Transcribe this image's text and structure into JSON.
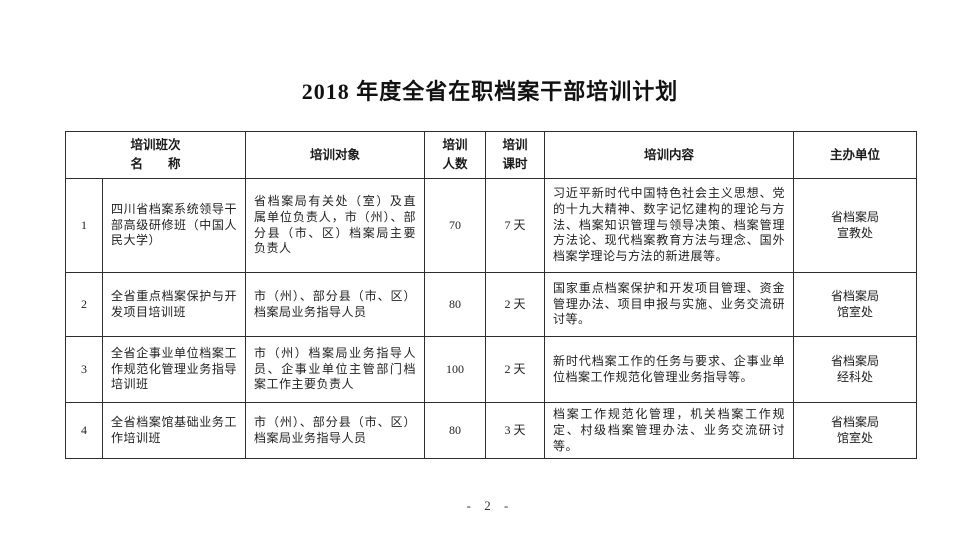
{
  "title": "2018 年度全省在职档案干部培训计划",
  "page_number": "- 2 -",
  "table": {
    "headers": {
      "class_name": "培训班次\n名　　称",
      "target": "培训对象",
      "count": "培训\n人数",
      "hours": "培训\n课时",
      "content": "培训内容",
      "organizer": "主办单位"
    },
    "rows": [
      {
        "no": "1",
        "name": "四川省档案系统领导干部高级研修班（中国人民大学）",
        "target": "省档案局有关处（室）及直属单位负责人，市（州）、部分县（市、区）档案局主要负责人",
        "count": "70",
        "hours": "7 天",
        "content": "习近平新时代中国特色社会主义思想、党的十九大精神、数字记忆建构的理论与方法、档案知识管理与领导决策、档案管理方法论、现代档案教育方法与理念、国外档案学理论与方法的新进展等。",
        "organizer": "省档案局\n宣教处"
      },
      {
        "no": "2",
        "name": "全省重点档案保护与开发项目培训班",
        "target": "市（州）、部分县（市、区）档案局业务指导人员",
        "count": "80",
        "hours": "2 天",
        "content": "国家重点档案保护和开发项目管理、资金管理办法、项目申报与实施、业务交流研讨等。",
        "organizer": "省档案局\n馆室处"
      },
      {
        "no": "3",
        "name": "全省企事业单位档案工作规范化管理业务指导培训班",
        "target": "市（州）档案局业务指导人员、企事业单位主管部门档案工作主要负责人",
        "count": "100",
        "hours": "2 天",
        "content": "新时代档案工作的任务与要求、企事业单位档案工作规范化管理业务指导等。",
        "organizer": "省档案局\n经科处"
      },
      {
        "no": "4",
        "name": "全省档案馆基础业务工作培训班",
        "target": "市（州）、部分县（市、区）档案局业务指导人员",
        "count": "80",
        "hours": "3 天",
        "content": "档案工作规范化管理，机关档案工作规定、村级档案管理办法、业务交流研讨等。",
        "organizer": "省档案局\n馆室处"
      }
    ]
  }
}
